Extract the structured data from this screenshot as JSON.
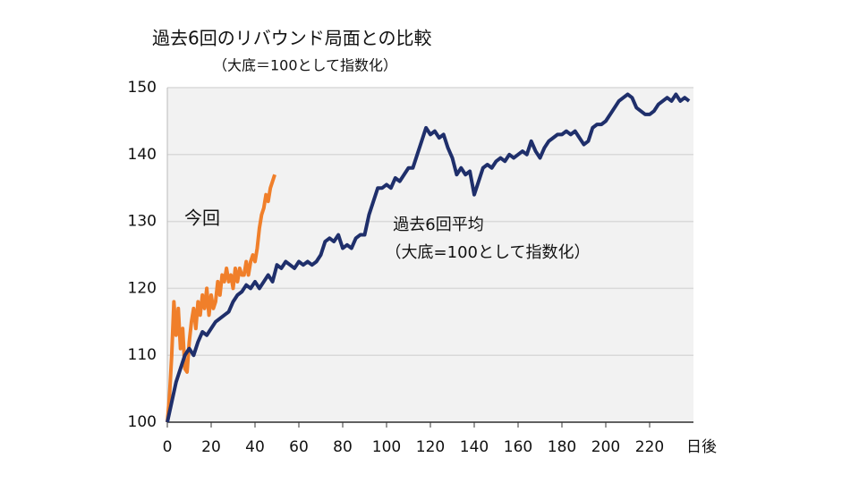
{
  "chart_data": {
    "type": "line",
    "title": "過去6回のリバウンド局面との比較",
    "subtitle": "（大底＝100として指数化）",
    "x_label": "日後",
    "annotations": [
      "（大底=100として指数化）"
    ],
    "xlim": [
      0,
      240
    ],
    "xticks": [
      0,
      20,
      40,
      60,
      80,
      100,
      120,
      140,
      160,
      180,
      200,
      220
    ],
    "ylim": [
      100,
      150
    ],
    "yticks": [
      100,
      110,
      120,
      130,
      140,
      150
    ],
    "grid": true,
    "series": [
      {
        "name": "今回",
        "color": "#f07f2a",
        "x": [
          0,
          1,
          2,
          3,
          4,
          5,
          6,
          7,
          8,
          9,
          10,
          11,
          12,
          13,
          14,
          15,
          16,
          17,
          18,
          19,
          20,
          21,
          22,
          23,
          24,
          25,
          26,
          27,
          28,
          29,
          30,
          31,
          32,
          33,
          34,
          35,
          36,
          37,
          38,
          39,
          40,
          41,
          42,
          43,
          44,
          45,
          46,
          47,
          48,
          49
        ],
        "values": [
          100,
          104,
          110,
          118,
          113,
          117,
          111,
          114,
          108,
          107.5,
          112,
          115,
          117,
          114,
          118,
          116,
          119,
          117,
          120,
          116,
          119,
          117,
          118,
          121,
          119,
          122,
          121,
          123,
          121,
          122,
          120,
          123,
          121,
          123,
          122,
          122,
          124,
          122,
          124,
          125,
          124,
          126,
          129,
          131,
          132,
          134,
          133,
          135,
          136,
          137
        ]
      },
      {
        "name": "過去6回平均",
        "color": "#1f2f6b",
        "x": [
          0,
          2,
          4,
          6,
          8,
          10,
          12,
          14,
          16,
          18,
          20,
          22,
          24,
          26,
          28,
          30,
          32,
          34,
          36,
          38,
          40,
          42,
          44,
          46,
          48,
          50,
          52,
          54,
          56,
          58,
          60,
          62,
          64,
          66,
          68,
          70,
          72,
          74,
          76,
          78,
          80,
          82,
          84,
          86,
          88,
          90,
          92,
          94,
          96,
          98,
          100,
          102,
          104,
          106,
          108,
          110,
          112,
          114,
          116,
          118,
          120,
          122,
          124,
          126,
          128,
          130,
          132,
          134,
          136,
          138,
          140,
          142,
          144,
          146,
          148,
          150,
          152,
          154,
          156,
          158,
          160,
          162,
          164,
          166,
          168,
          170,
          172,
          174,
          176,
          178,
          180,
          182,
          184,
          186,
          188,
          190,
          192,
          194,
          196,
          198,
          200,
          202,
          204,
          206,
          208,
          210,
          212,
          214,
          216,
          218,
          220,
          222,
          224,
          226,
          228,
          230,
          232,
          234,
          236,
          238
        ],
        "values": [
          100,
          103,
          106,
          108,
          110,
          111,
          110,
          112,
          113.5,
          113,
          114,
          115,
          115.5,
          116,
          116.5,
          118,
          119,
          119.5,
          120.5,
          120,
          121,
          120,
          121,
          122,
          121,
          123.5,
          123,
          124,
          123.5,
          123,
          124,
          123.5,
          124,
          123.5,
          124,
          125,
          127,
          127.5,
          127,
          128,
          126,
          126.5,
          126,
          127.5,
          128,
          128,
          131,
          133,
          135,
          135,
          135.5,
          135,
          136.5,
          136,
          137,
          138,
          138,
          140,
          142,
          144,
          143,
          143.5,
          142.5,
          143,
          141,
          139.5,
          137,
          138,
          137,
          137.5,
          134,
          136,
          138,
          138.5,
          138,
          139,
          139.5,
          139,
          140,
          139.5,
          140,
          140.5,
          140,
          142,
          140.5,
          139.5,
          141,
          142,
          142.5,
          143,
          143,
          143.5,
          143,
          143.5,
          142.5,
          141.5,
          142,
          144,
          144.5,
          144.5,
          145,
          146,
          147,
          148,
          148.5,
          149,
          148.5,
          147,
          146.5,
          146,
          146,
          146.5,
          147.5,
          148,
          148.5,
          148,
          149,
          148,
          148.5,
          148
        ]
      }
    ]
  }
}
